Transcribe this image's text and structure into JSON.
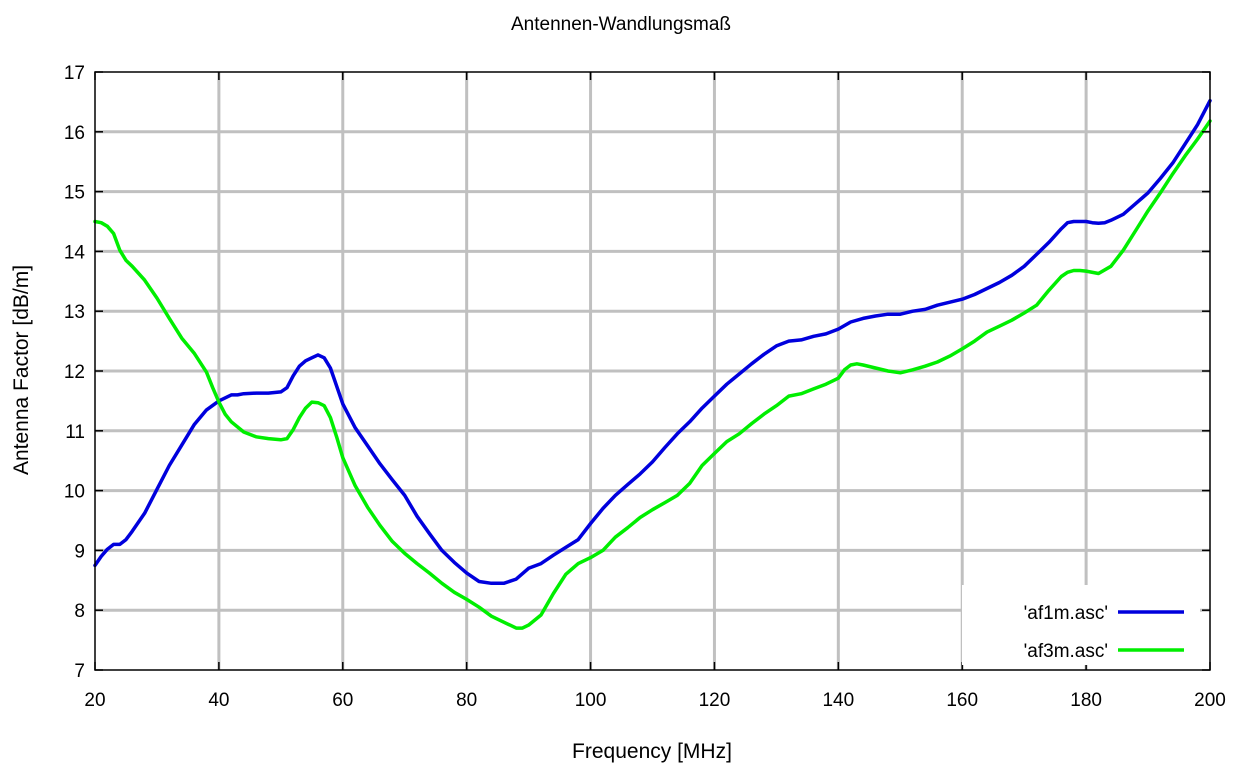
{
  "chart_data": {
    "type": "line",
    "title": "Antennen-Wandlungsmaß",
    "xlabel": "Frequency [MHz]",
    "ylabel": "Antenna Factor [dB/m]",
    "xlim": [
      20,
      200
    ],
    "ylim": [
      7,
      17
    ],
    "xticks": [
      20,
      40,
      60,
      80,
      100,
      120,
      140,
      160,
      180,
      200
    ],
    "yticks": [
      7,
      8,
      9,
      10,
      11,
      12,
      13,
      14,
      15,
      16,
      17
    ],
    "grid": true,
    "legend_position": "bottom-right",
    "series": [
      {
        "name": "'af1m.asc'",
        "color": "#0000dd",
        "x": [
          20,
          21,
          22,
          23,
          24,
          25,
          26,
          27,
          28,
          30,
          32,
          34,
          36,
          38,
          40,
          42,
          43,
          44,
          46,
          48,
          50,
          51,
          52,
          53,
          54,
          55,
          56,
          57,
          58,
          59,
          60,
          62,
          64,
          66,
          68,
          70,
          72,
          74,
          76,
          78,
          80,
          82,
          84,
          86,
          88,
          90,
          92,
          94,
          96,
          98,
          100,
          102,
          104,
          106,
          108,
          110,
          112,
          114,
          116,
          118,
          120,
          122,
          124,
          126,
          128,
          130,
          132,
          134,
          136,
          138,
          140,
          142,
          144,
          146,
          148,
          150,
          152,
          154,
          156,
          158,
          160,
          162,
          164,
          166,
          168,
          170,
          172,
          174,
          176,
          177,
          178,
          180,
          181,
          182,
          183,
          184,
          186,
          188,
          190,
          192,
          194,
          196,
          198,
          200
        ],
        "y": [
          8.75,
          8.9,
          9.02,
          9.1,
          9.1,
          9.18,
          9.32,
          9.47,
          9.62,
          10.02,
          10.42,
          10.76,
          11.1,
          11.35,
          11.5,
          11.6,
          11.6,
          11.62,
          11.63,
          11.63,
          11.65,
          11.72,
          11.92,
          12.08,
          12.17,
          12.22,
          12.27,
          12.22,
          12.05,
          11.75,
          11.45,
          11.05,
          10.75,
          10.45,
          10.18,
          9.92,
          9.57,
          9.28,
          9.0,
          8.8,
          8.62,
          8.48,
          8.45,
          8.45,
          8.52,
          8.7,
          8.78,
          8.92,
          9.05,
          9.18,
          9.45,
          9.7,
          9.92,
          10.1,
          10.28,
          10.48,
          10.72,
          10.95,
          11.15,
          11.38,
          11.58,
          11.78,
          11.95,
          12.12,
          12.28,
          12.42,
          12.5,
          12.52,
          12.58,
          12.62,
          12.7,
          12.82,
          12.88,
          12.92,
          12.95,
          12.95,
          13.0,
          13.03,
          13.1,
          13.15,
          13.2,
          13.28,
          13.38,
          13.48,
          13.6,
          13.75,
          13.95,
          14.15,
          14.38,
          14.48,
          14.5,
          14.5,
          14.48,
          14.47,
          14.48,
          14.52,
          14.62,
          14.8,
          14.98,
          15.22,
          15.48,
          15.8,
          16.12,
          16.52
        ]
      },
      {
        "name": "'af3m.asc'",
        "color": "#00ee00",
        "x": [
          20,
          21,
          22,
          23,
          24,
          25,
          26,
          28,
          30,
          32,
          34,
          36,
          38,
          39,
          40,
          41,
          42,
          44,
          46,
          48,
          50,
          51,
          52,
          53,
          54,
          55,
          56,
          57,
          58,
          59,
          60,
          62,
          64,
          66,
          68,
          70,
          72,
          74,
          76,
          78,
          80,
          82,
          84,
          86,
          87,
          88,
          89,
          90,
          92,
          94,
          96,
          98,
          100,
          102,
          104,
          106,
          108,
          110,
          112,
          114,
          116,
          118,
          120,
          122,
          124,
          126,
          128,
          130,
          132,
          134,
          136,
          138,
          140,
          141,
          142,
          143,
          144,
          146,
          148,
          150,
          152,
          154,
          156,
          158,
          160,
          162,
          164,
          166,
          168,
          170,
          172,
          174,
          176,
          177,
          178,
          179,
          180,
          182,
          184,
          186,
          188,
          190,
          192,
          194,
          196,
          198,
          200
        ],
        "y": [
          14.5,
          14.48,
          14.42,
          14.3,
          14.02,
          13.85,
          13.75,
          13.52,
          13.22,
          12.88,
          12.55,
          12.3,
          11.98,
          11.72,
          11.48,
          11.28,
          11.15,
          10.98,
          10.9,
          10.87,
          10.85,
          10.87,
          11.02,
          11.22,
          11.38,
          11.48,
          11.47,
          11.42,
          11.22,
          10.9,
          10.55,
          10.08,
          9.72,
          9.42,
          9.15,
          8.95,
          8.78,
          8.62,
          8.45,
          8.3,
          8.18,
          8.05,
          7.9,
          7.8,
          7.75,
          7.7,
          7.7,
          7.75,
          7.92,
          8.28,
          8.6,
          8.78,
          8.88,
          9.0,
          9.22,
          9.38,
          9.55,
          9.68,
          9.8,
          9.92,
          10.12,
          10.42,
          10.62,
          10.82,
          10.95,
          11.12,
          11.28,
          11.42,
          11.58,
          11.62,
          11.7,
          11.78,
          11.88,
          12.02,
          12.1,
          12.12,
          12.1,
          12.05,
          12.0,
          11.97,
          12.02,
          12.08,
          12.15,
          12.25,
          12.37,
          12.5,
          12.65,
          12.75,
          12.85,
          12.97,
          13.1,
          13.35,
          13.58,
          13.65,
          13.68,
          13.68,
          13.67,
          13.63,
          13.75,
          14.02,
          14.35,
          14.68,
          14.98,
          15.3,
          15.6,
          15.88,
          16.18
        ]
      }
    ]
  }
}
